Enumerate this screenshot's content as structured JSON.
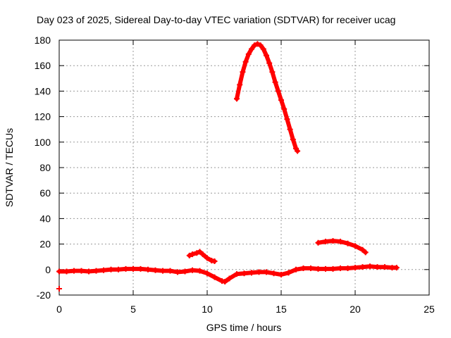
{
  "chart_data": {
    "type": "scatter",
    "title": "Day 023 of 2025, Sidereal Day-to-day VTEC variation (SDTVAR) for receiver ucag",
    "xlabel": "GPS time / hours",
    "ylabel": "SDTVAR / TECUs",
    "xlim": [
      0,
      25
    ],
    "ylim": [
      -20,
      180
    ],
    "xticks": [
      0,
      5,
      10,
      15,
      20,
      25
    ],
    "yticks": [
      -20,
      0,
      20,
      40,
      60,
      80,
      100,
      120,
      140,
      160,
      180
    ],
    "grid": true,
    "marker_color": "#ff0000",
    "series": [
      {
        "points": [
          [
            0.0,
            -1.5
          ],
          [
            0.5,
            -1.5
          ],
          [
            1.0,
            -1.0
          ],
          [
            1.5,
            -1.0
          ],
          [
            2.0,
            -1.5
          ],
          [
            2.5,
            -1.0
          ],
          [
            3.0,
            -0.5
          ],
          [
            3.5,
            0.0
          ],
          [
            4.0,
            0.0
          ],
          [
            4.5,
            0.5
          ],
          [
            5.0,
            0.5
          ],
          [
            5.5,
            0.5
          ],
          [
            6.0,
            0.0
          ],
          [
            6.5,
            -0.5
          ],
          [
            7.0,
            -1.0
          ],
          [
            7.5,
            -1.0
          ],
          [
            8.0,
            -2.0
          ],
          [
            8.5,
            -1.5
          ],
          [
            9.0,
            -0.5
          ],
          [
            9.5,
            -1.0
          ],
          [
            10.0,
            -3.0
          ],
          [
            10.5,
            -6.0
          ],
          [
            11.0,
            -9.0
          ],
          [
            11.2,
            -9.5
          ],
          [
            11.5,
            -7.0
          ],
          [
            12.0,
            -3.5
          ],
          [
            12.5,
            -3.0
          ],
          [
            13.0,
            -2.5
          ],
          [
            13.5,
            -2.0
          ],
          [
            14.0,
            -2.0
          ],
          [
            14.5,
            -3.0
          ],
          [
            15.0,
            -4.0
          ],
          [
            15.5,
            -2.5
          ],
          [
            16.0,
            0.0
          ],
          [
            16.5,
            1.0
          ],
          [
            17.0,
            1.0
          ],
          [
            17.5,
            0.5
          ],
          [
            18.0,
            0.5
          ],
          [
            18.5,
            0.5
          ],
          [
            19.0,
            1.0
          ],
          [
            19.5,
            1.0
          ],
          [
            20.0,
            1.5
          ],
          [
            20.5,
            2.0
          ],
          [
            21.0,
            2.5
          ],
          [
            21.5,
            2.0
          ],
          [
            22.0,
            2.0
          ],
          [
            22.5,
            1.5
          ],
          [
            22.8,
            1.5
          ]
        ]
      },
      {
        "points": [
          [
            8.8,
            11.0
          ],
          [
            9.0,
            12.0
          ],
          [
            9.3,
            13.0
          ],
          [
            9.5,
            14.0
          ],
          [
            9.7,
            12.0
          ],
          [
            10.0,
            9.0
          ],
          [
            10.3,
            7.0
          ],
          [
            10.5,
            6.5
          ]
        ]
      },
      {
        "points": [
          [
            12.0,
            134
          ],
          [
            12.2,
            145
          ],
          [
            12.4,
            155
          ],
          [
            12.6,
            163
          ],
          [
            12.8,
            169
          ],
          [
            13.0,
            173
          ],
          [
            13.2,
            176
          ],
          [
            13.4,
            177
          ],
          [
            13.6,
            176
          ],
          [
            13.8,
            173
          ],
          [
            14.0,
            168
          ],
          [
            14.2,
            162
          ],
          [
            14.4,
            155
          ],
          [
            14.6,
            147
          ],
          [
            14.8,
            140
          ],
          [
            15.0,
            133
          ],
          [
            15.2,
            126
          ],
          [
            15.4,
            118
          ],
          [
            15.6,
            110
          ],
          [
            15.8,
            102
          ],
          [
            16.0,
            95
          ],
          [
            16.1,
            93
          ]
        ]
      },
      {
        "points": [
          [
            17.5,
            21.0
          ],
          [
            18.0,
            22.0
          ],
          [
            18.5,
            22.5
          ],
          [
            19.0,
            22.0
          ],
          [
            19.5,
            20.5
          ],
          [
            20.0,
            18.5
          ],
          [
            20.5,
            15.5
          ],
          [
            20.7,
            13.5
          ]
        ]
      },
      {
        "points": [
          [
            0.0,
            -15.0
          ]
        ]
      }
    ]
  }
}
